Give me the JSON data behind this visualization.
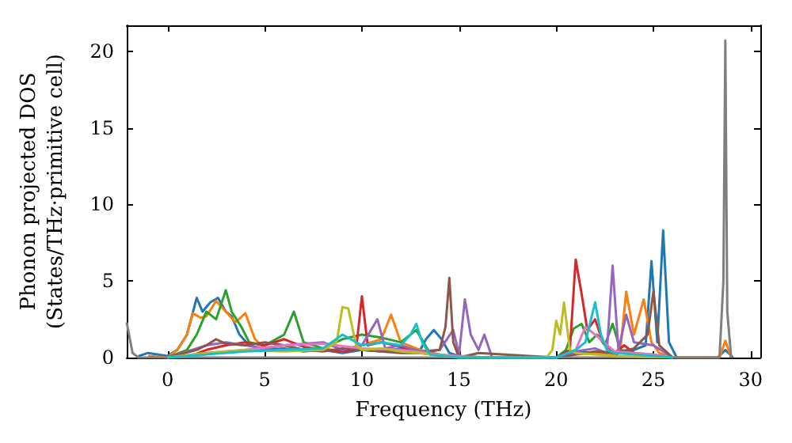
{
  "chart_data": {
    "type": "line",
    "xlabel": "Frequency (THz)",
    "ylabel": "Phonon projected DOS\n(States/THz·primitive cell)",
    "xlim": [
      -2.1,
      30.5
    ],
    "ylim": [
      0,
      21.7
    ],
    "xticks": [
      0,
      5,
      10,
      15,
      20,
      25,
      30
    ],
    "yticks": [
      0,
      5,
      10,
      15,
      20
    ],
    "marker": "none",
    "series": [
      {
        "color": "#1f77b4",
        "x": [
          -1.5,
          -1,
          0,
          0.5,
          1,
          1.5,
          1.8,
          2.2,
          2.6,
          3,
          3.3,
          3.7,
          4.2,
          5,
          6,
          7,
          8,
          9,
          10,
          11,
          12,
          13,
          13.3,
          13.7,
          14.1,
          14.5,
          15,
          16.5,
          20,
          21,
          22,
          23,
          24,
          24.6,
          24.9,
          25.2,
          25.5,
          25.8,
          26.2,
          28.3,
          28.7,
          29.1
        ],
        "values": [
          0.1,
          0.3,
          0.1,
          0.5,
          1.5,
          3.9,
          3.0,
          3.6,
          3.9,
          3.0,
          2.7,
          1.5,
          0.8,
          0.5,
          0.6,
          0.4,
          0.5,
          0.3,
          0.5,
          0.4,
          0.6,
          0.5,
          1.2,
          1.8,
          1.2,
          0.3,
          0.1,
          0,
          0,
          0.4,
          0.3,
          0.2,
          0.5,
          0.8,
          6.3,
          1,
          8.3,
          1,
          0,
          0,
          0.5,
          0
        ]
      },
      {
        "color": "#ff7f0e",
        "x": [
          -1,
          0,
          0.5,
          1,
          1.3,
          1.7,
          2,
          2.5,
          3,
          3.5,
          4,
          4.5,
          5,
          6,
          7,
          8,
          9,
          10,
          11,
          11.5,
          12,
          13,
          14,
          15,
          20,
          21,
          22,
          23,
          23.3,
          23.6,
          24,
          24.5,
          24.9,
          25.3,
          26,
          28.4,
          28.7,
          29
        ],
        "values": [
          0.1,
          0,
          0.5,
          1.5,
          2.9,
          2.6,
          2.7,
          3.7,
          3.0,
          2.3,
          2.9,
          1.2,
          0.6,
          0.8,
          0.5,
          0.6,
          0.4,
          0.8,
          1.2,
          2.8,
          1.0,
          0.5,
          0.2,
          0,
          0,
          0.2,
          0.3,
          0.2,
          0.5,
          4.3,
          1.5,
          3.8,
          1.0,
          0.3,
          0,
          0,
          1.1,
          0
        ]
      },
      {
        "color": "#2ca02c",
        "x": [
          0,
          1,
          1.5,
          2,
          2.5,
          3,
          3.3,
          3.8,
          4.2,
          5,
          6,
          6.5,
          7,
          8,
          9,
          10,
          11,
          12,
          12.8,
          13.5,
          15,
          20,
          20.5,
          20.9,
          21.3,
          21.7,
          22.1,
          22.5,
          22.9,
          23.3,
          24,
          25,
          26
        ],
        "values": [
          0,
          0.5,
          1.5,
          3.0,
          2.5,
          4.4,
          3.0,
          2.0,
          1.0,
          0.8,
          1.5,
          3.0,
          1.0,
          0.6,
          1.2,
          1.5,
          1.3,
          1.0,
          1.8,
          0.3,
          0,
          0,
          0.5,
          1.9,
          2.2,
          1.0,
          1.5,
          0.8,
          2.2,
          0.5,
          0.3,
          0.2,
          0
        ]
      },
      {
        "color": "#d62728",
        "x": [
          1,
          2,
          3,
          4,
          5,
          6,
          7,
          8,
          9,
          9.7,
          10,
          10.3,
          11,
          12,
          13,
          15,
          20,
          20.7,
          21,
          21.3,
          21.6,
          22,
          22.4,
          23,
          23.5,
          24,
          25,
          26
        ],
        "values": [
          0,
          0.5,
          0.8,
          1.0,
          0.8,
          1.2,
          0.7,
          0.5,
          0.4,
          0.5,
          4.0,
          0.8,
          1.0,
          0.7,
          0.3,
          0,
          0,
          0.5,
          6.4,
          4.2,
          1.8,
          2.5,
          1.0,
          0.3,
          0.8,
          0.3,
          0.1,
          0
        ]
      },
      {
        "color": "#9467bd",
        "x": [
          0,
          2,
          3,
          4,
          5,
          6,
          8,
          9,
          10,
          10.8,
          11.2,
          12,
          13,
          14,
          14.7,
          15,
          15.3,
          15.6,
          16,
          16.3,
          16.7,
          20,
          21,
          22,
          22.6,
          22.9,
          23.2,
          23.6,
          24,
          25,
          25.5,
          26
        ],
        "values": [
          0,
          0.8,
          1.0,
          0.8,
          0.6,
          0.8,
          1.0,
          0.5,
          0.8,
          2.5,
          0.6,
          0.8,
          0.4,
          0.5,
          1.8,
          0.2,
          3.8,
          1.5,
          0.5,
          1.5,
          0,
          0,
          0.4,
          0.6,
          0.3,
          6.0,
          0.5,
          2.8,
          1.0,
          0.8,
          0.4,
          0
        ]
      },
      {
        "color": "#8c564b",
        "x": [
          0,
          1.5,
          2,
          2.5,
          3,
          4,
          5,
          6,
          7,
          8,
          9,
          10,
          11,
          12,
          13,
          14,
          14.3,
          14.5,
          14.7,
          15,
          16,
          20,
          21,
          22,
          23,
          24,
          24.7,
          25,
          25.3,
          26
        ],
        "values": [
          0,
          0.5,
          0.8,
          1.2,
          0.9,
          0.8,
          1.0,
          0.8,
          0.5,
          0.4,
          0.6,
          0.5,
          0.4,
          0.3,
          0.3,
          0.5,
          2.0,
          5.2,
          1.0,
          0,
          0.3,
          0,
          0.2,
          0.4,
          0.3,
          0.6,
          1.5,
          4.3,
          0.8,
          0
        ]
      },
      {
        "color": "#e377c2",
        "x": [
          0,
          2,
          4,
          6,
          8,
          10,
          12,
          14,
          16,
          20,
          21,
          21.5,
          22,
          23,
          24,
          25,
          26
        ],
        "values": [
          0,
          0.3,
          0.5,
          0.8,
          0.9,
          0.6,
          0.5,
          0.2,
          0,
          0,
          0.5,
          2.0,
          1.5,
          0.4,
          0.3,
          0.2,
          0
        ]
      },
      {
        "color": "#7f7f7f",
        "x": [
          -2.1,
          -1.8,
          -1.5,
          0,
          28.4,
          28.6,
          28.7,
          28.8,
          29
        ],
        "values": [
          2.3,
          0.3,
          0,
          0,
          0,
          5,
          20.7,
          3,
          0
        ]
      },
      {
        "color": "#bcbd22",
        "x": [
          0,
          2,
          4,
          6,
          8,
          8.7,
          9,
          9.3,
          9.7,
          10,
          11,
          12,
          13,
          15,
          19.5,
          19.8,
          20,
          20.2,
          20.4,
          20.7,
          21,
          22,
          23,
          26
        ],
        "values": [
          0,
          0.3,
          0.5,
          0.4,
          0.5,
          1.0,
          3.3,
          3.2,
          0.8,
          0.5,
          0.6,
          0.4,
          0.3,
          0,
          0,
          0.5,
          2.4,
          1.5,
          3.6,
          0.5,
          0.3,
          0.2,
          0.1,
          0
        ]
      },
      {
        "color": "#17becf",
        "x": [
          0,
          2,
          4,
          6,
          8,
          9,
          10,
          11,
          12,
          12.5,
          12.8,
          13.1,
          13.5,
          15,
          20,
          21,
          21.5,
          22,
          22.3,
          22.6,
          23,
          24,
          26
        ],
        "values": [
          0,
          0.2,
          0.4,
          0.5,
          0.6,
          1.5,
          0.8,
          1.0,
          0.8,
          1.5,
          2.2,
          1.0,
          0.2,
          0,
          0,
          0.5,
          1.0,
          3.6,
          1.5,
          0.5,
          0.3,
          0.2,
          0
        ]
      }
    ]
  }
}
